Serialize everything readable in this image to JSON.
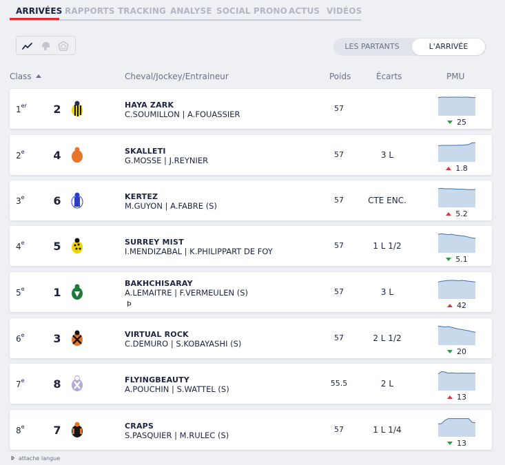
{
  "tabs": [
    {
      "label": "ARRIVÉES",
      "active": true
    },
    {
      "label": "RAPPORTS",
      "active": false
    },
    {
      "label": "TRACKING",
      "active": false
    },
    {
      "label": "ANALYSE",
      "active": false
    },
    {
      "label": "SOCIAL PRONO",
      "active": false
    },
    {
      "label": "ACTUS",
      "active": false
    },
    {
      "label": "VIDÉOS",
      "active": false
    }
  ],
  "view_icons": [
    "line-chart-icon",
    "jockey-helmet-icon",
    "pentagon-icon"
  ],
  "toggle": {
    "left": "LES PARTANTS",
    "right": "L'ARRIVÉE",
    "selected": "right"
  },
  "headers": {
    "class": "Class",
    "cheval": "Cheval/Jockey/Entraineur",
    "poids": "Poids",
    "ecarts": "Écarts",
    "pmu": "PMU"
  },
  "colors": {
    "accent": "#e8242f",
    "odds_down": "#2a9d3a",
    "odds_up": "#e03340",
    "spark_fill": "#c9d9ec",
    "spark_line": "#3f6fa8"
  },
  "rows": [
    {
      "place": "1",
      "suffix": "er",
      "num": "2",
      "horse": "HAYA ZARK",
      "jockey": "C.SOUMILLON | A.FOUASSIER",
      "poids": "57",
      "ecart": "",
      "odds": "25",
      "trend": "down",
      "silk": "yellow-black-stripes",
      "mark": "",
      "spark": [
        0.88,
        0.9,
        0.9,
        0.89,
        0.9,
        0.9,
        0.9,
        0.89,
        0.9,
        0.9,
        0.88,
        0.88
      ]
    },
    {
      "place": "2",
      "suffix": "e",
      "num": "4",
      "horse": "SKALLETI",
      "jockey": "G.MOSSE | J.REYNIER",
      "poids": "57",
      "ecart": "3 L",
      "odds": "1.8",
      "trend": "up",
      "silk": "orange",
      "mark": "",
      "spark": [
        0.78,
        0.8,
        0.8,
        0.8,
        0.8,
        0.8,
        0.81,
        0.81,
        0.82,
        0.84,
        0.92,
        0.93
      ]
    },
    {
      "place": "3",
      "suffix": "e",
      "num": "6",
      "horse": "KERTEZ",
      "jockey": "M.GUYON | A.FABRE (S)",
      "poids": "57",
      "ecart": "CTE ENC.",
      "odds": "5.2",
      "trend": "up",
      "silk": "blue-white",
      "mark": "",
      "spark": [
        0.9,
        0.92,
        0.9,
        0.9,
        0.9,
        0.89,
        0.88,
        0.88,
        0.87,
        0.86,
        0.86,
        0.87
      ]
    },
    {
      "place": "4",
      "suffix": "e",
      "num": "5",
      "horse": "SURREY MIST",
      "jockey": "I.MENDIZABAL | K.PHILIPPART DE FOY",
      "poids": "57",
      "ecart": "1 L 1/2",
      "odds": "5.1",
      "trend": "down",
      "silk": "yellow-black-dots",
      "mark": "",
      "spark": [
        0.9,
        0.92,
        0.9,
        0.88,
        0.9,
        0.86,
        0.84,
        0.82,
        0.8,
        0.76,
        0.72,
        0.7
      ]
    },
    {
      "place": "5",
      "suffix": "e",
      "num": "1",
      "horse": "BAKHCHISARAY",
      "jockey": "A.LEMAITRE | F.VERMEULEN (S)",
      "poids": "57",
      "ecart": "3 L",
      "odds": "42",
      "trend": "up",
      "silk": "green-white",
      "mark": "Þ",
      "spark": [
        0.82,
        0.86,
        0.88,
        0.9,
        0.9,
        0.9,
        0.88,
        0.9,
        0.88,
        0.86,
        0.84,
        0.82
      ]
    },
    {
      "place": "6",
      "suffix": "e",
      "num": "3",
      "horse": "VIRTUAL ROCK",
      "jockey": "C.DEMURO | S.KOBAYASHI (S)",
      "poids": "57",
      "ecart": "2 L 1/2",
      "odds": "20",
      "trend": "down",
      "silk": "orange-black-cross",
      "mark": "",
      "spark": [
        0.92,
        0.9,
        0.88,
        0.9,
        0.86,
        0.82,
        0.78,
        0.76,
        0.72,
        0.7,
        0.65,
        0.62
      ]
    },
    {
      "place": "7",
      "suffix": "e",
      "num": "8",
      "horse": "FLYINGBEAUTY",
      "jockey": "A.POUCHIN | S.WATTEL (S)",
      "poids": "55.5",
      "ecart": "2 L",
      "odds": "13",
      "trend": "up",
      "silk": "lilac-white",
      "mark": "",
      "spark": [
        0.8,
        0.92,
        0.9,
        0.84,
        0.86,
        0.84,
        0.84,
        0.85,
        0.84,
        0.84,
        0.84,
        0.84
      ]
    },
    {
      "place": "8",
      "suffix": "e",
      "num": "7",
      "horse": "CRAPS",
      "jockey": "S.PASQUIER | M.RULEC (S)",
      "poids": "57",
      "ecart": "1 L 1/4",
      "odds": "13",
      "trend": "down",
      "silk": "black-orange",
      "mark": "",
      "spark": [
        0.62,
        0.64,
        0.8,
        0.88,
        0.88,
        0.88,
        0.88,
        0.88,
        0.88,
        0.88,
        0.7,
        0.68
      ]
    }
  ],
  "footnote": {
    "symbol": "Þ",
    "text": "attache langue"
  }
}
